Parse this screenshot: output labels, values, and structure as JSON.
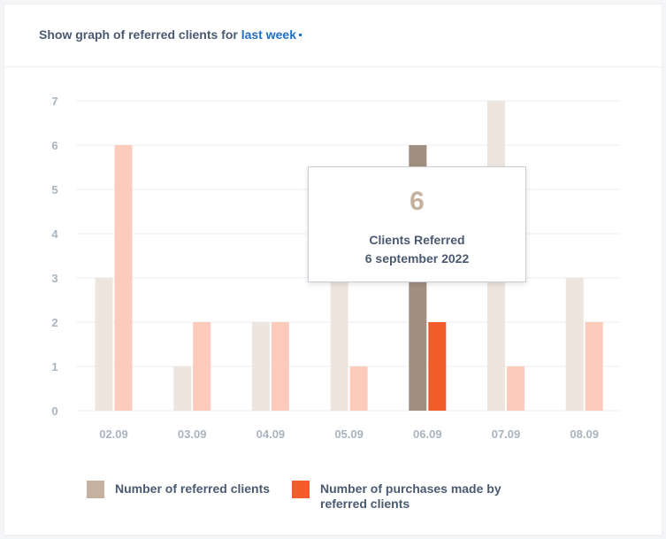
{
  "header": {
    "prefix": "Show graph of referred clients for",
    "period": "last week"
  },
  "chart_data": {
    "type": "bar",
    "categories": [
      "02.09",
      "03.09",
      "04.09",
      "05.09",
      "06.09",
      "07.09",
      "08.09"
    ],
    "series": [
      {
        "name": "Number of referred clients",
        "values": [
          3,
          1,
          2,
          3,
          6,
          7,
          3
        ]
      },
      {
        "name": "Number of purchases made by referred clients",
        "values": [
          6,
          2,
          2,
          1,
          2,
          1,
          2
        ]
      }
    ],
    "ylim": [
      0,
      7
    ],
    "yticks": [
      0,
      1,
      2,
      3,
      4,
      5,
      6,
      7
    ],
    "grid": true,
    "highlighted_category": "06.09",
    "colors": {
      "series1": "#ede5de",
      "series2": "#fccbbb",
      "series1_highlight": "#a08f80",
      "series2_highlight": "#f25c2b",
      "grid": "#eceef2"
    },
    "legend_position": "bottom"
  },
  "tooltip": {
    "value": "6",
    "label": "Clients Referred",
    "date": "6 september 2022"
  },
  "legend": [
    {
      "label": "Number of referred clients",
      "color": "#c4b19f"
    },
    {
      "label": "Number of purchases made by referred clients",
      "color": "#f25c2b"
    }
  ]
}
